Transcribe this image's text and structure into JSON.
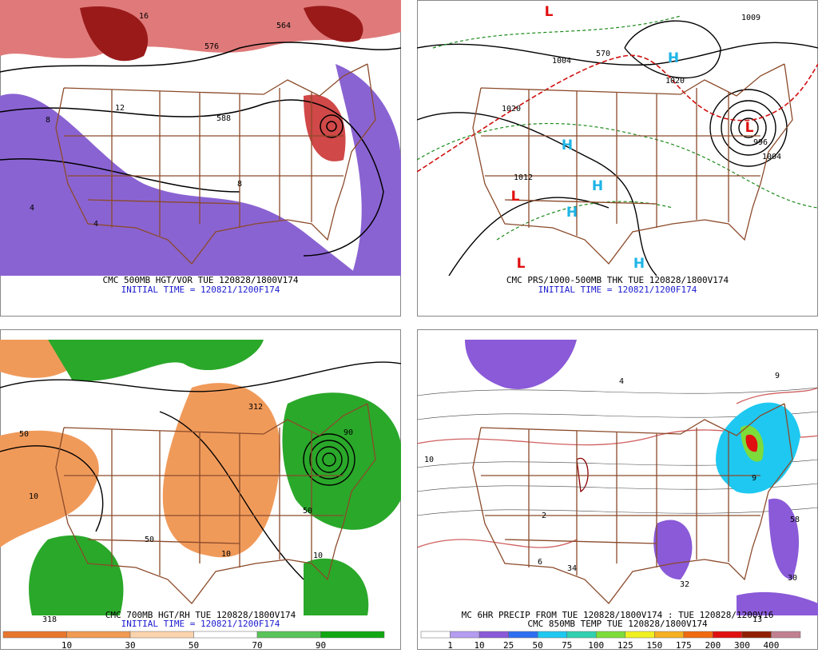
{
  "panels": [
    {
      "caption": "CMC 500MB HGT/VOR TUE 120828/1800V174",
      "line2": "INITIAL TIME = 120821/1200F174",
      "map_labels": [
        "576",
        "588",
        "564",
        "8",
        "12",
        "16",
        "4",
        "8",
        "4"
      ]
    },
    {
      "caption": "CMC PRS/1000-500MB THK TUE 120828/1800V174",
      "line2": "INITIAL TIME = 120821/1200F174",
      "map_labels": [
        "L",
        "H",
        "H",
        "H",
        "H",
        "L",
        "L",
        "H",
        "L",
        "1020",
        "1020",
        "1012",
        "1004",
        "1004",
        "996",
        "570",
        "1009"
      ]
    },
    {
      "caption": "CMC 700MB HGT/RH TUE 120828/1800V174",
      "line2": "INITIAL TIME = 120821/1200F174",
      "map_labels": [
        "312",
        "10",
        "50",
        "10",
        "50",
        "318",
        "90",
        "50",
        "10"
      ]
    },
    {
      "caption": "MC 6HR PRECIP FROM TUE 120828/1800V174 : TUE 120828/1200V16",
      "line2": "CMC 850MB TEMP TUE 120828/1800V174",
      "map_labels": [
        "4",
        "2",
        "6",
        "34",
        "32",
        "58",
        "30",
        "13",
        "9",
        "9",
        "10"
      ]
    }
  ],
  "colorbars": [
    {
      "labels": [
        "10",
        "30",
        "50",
        "70",
        "90"
      ]
    },
    {
      "labels": [
        "1",
        "10",
        "25",
        "50",
        "75",
        "100",
        "125",
        "150",
        "175",
        "200",
        "300",
        "400"
      ]
    }
  ]
}
